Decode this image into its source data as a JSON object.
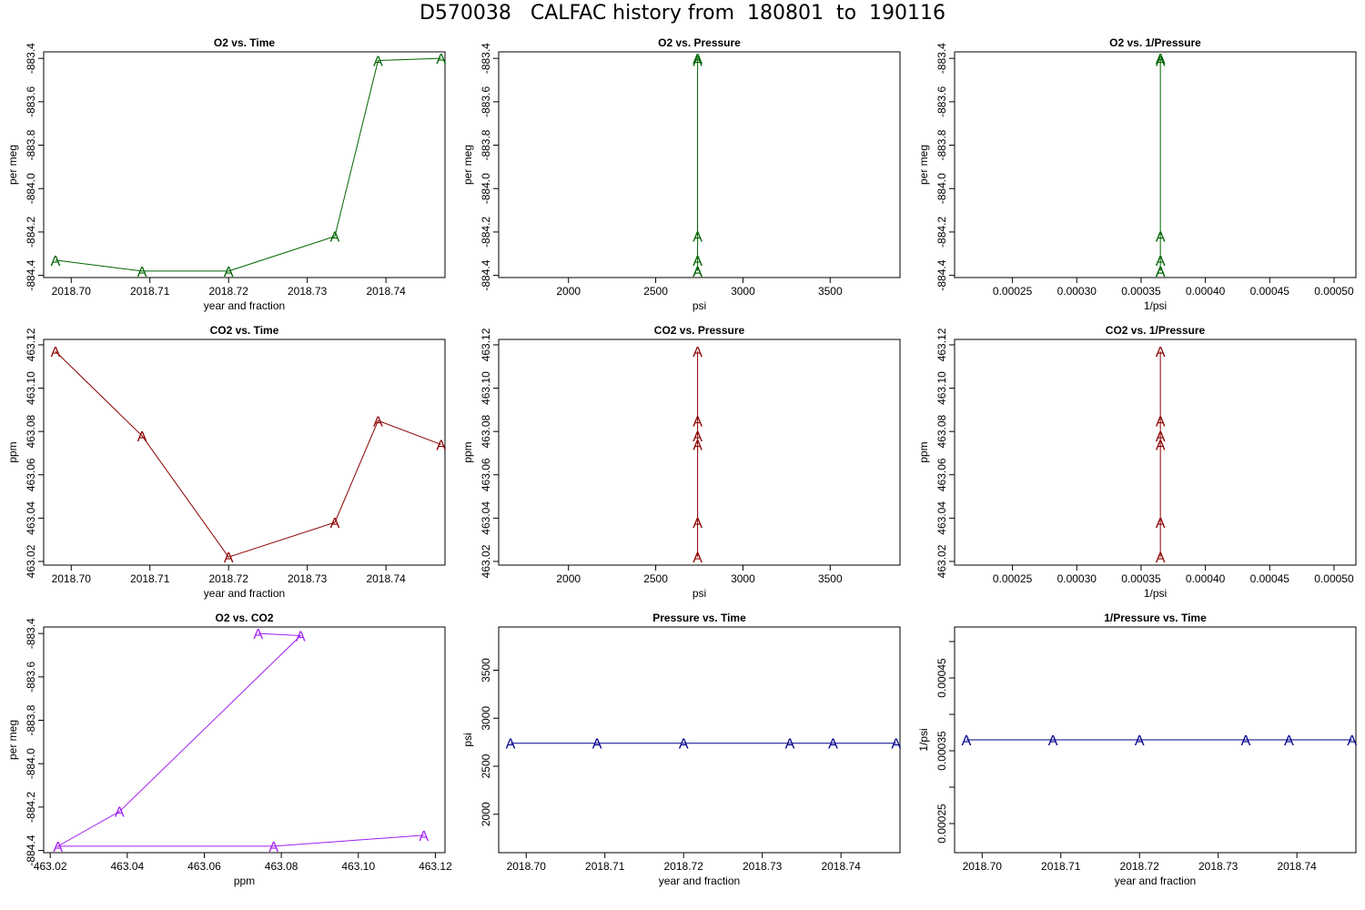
{
  "title": "D570038   CALFAC history from  180801  to  190116",
  "chart_data": [
    {
      "type": "line",
      "title": "O2 vs. Time",
      "xlabel": "year and fraction",
      "ylabel": "per meg",
      "xlim": [
        2018.6965,
        2018.7475
      ],
      "ylim": [
        -884.41,
        -883.37
      ],
      "xticks": [
        "2018.70",
        "2018.71",
        "2018.72",
        "2018.73",
        "2018.74"
      ],
      "yticks": [
        "-884.4",
        "-884.2",
        "-884.0",
        "-883.8",
        "-883.6",
        "-883.4"
      ],
      "color": "#006400",
      "marker": "A",
      "series": [
        {
          "x": [
            2018.698,
            2018.709,
            2018.72,
            2018.7335,
            2018.739,
            2018.747
          ],
          "y": [
            -884.33,
            -884.38,
            -884.38,
            -884.22,
            -883.41,
            -883.4
          ]
        }
      ]
    },
    {
      "type": "line",
      "title": "O2 vs. Pressure",
      "xlabel": "psi",
      "ylabel": "per meg",
      "xlim": [
        1600,
        3900
      ],
      "ylim": [
        -884.41,
        -883.37
      ],
      "xticks": [
        "2000",
        "2500",
        "3000",
        "3500"
      ],
      "yticks": [
        "-884.4",
        "-884.2",
        "-884.0",
        "-883.8",
        "-883.6",
        "-883.4"
      ],
      "color": "#006400",
      "marker": "A",
      "series": [
        {
          "x": [
            2740,
            2740,
            2740,
            2740,
            2740,
            2740
          ],
          "y": [
            -884.33,
            -884.38,
            -884.38,
            -884.22,
            -883.41,
            -883.4
          ]
        }
      ]
    },
    {
      "type": "line",
      "title": "O2 vs. 1/Pressure",
      "xlabel": "1/psi",
      "ylabel": "per meg",
      "xlim": [
        0.000205,
        0.000517
      ],
      "ylim": [
        -884.41,
        -883.37
      ],
      "xticks": [
        "0.00025",
        "0.00030",
        "0.00035",
        "0.00040",
        "0.00045",
        "0.00050"
      ],
      "yticks": [
        "-884.4",
        "-884.2",
        "-884.0",
        "-883.8",
        "-883.6",
        "-883.4"
      ],
      "color": "#006400",
      "marker": "A",
      "series": [
        {
          "x": [
            0.000365,
            0.000365,
            0.000365,
            0.000365,
            0.000365,
            0.000365
          ],
          "y": [
            -884.33,
            -884.38,
            -884.38,
            -884.22,
            -883.41,
            -883.4
          ]
        }
      ]
    },
    {
      "type": "line",
      "title": "CO2 vs. Time",
      "xlabel": "year and fraction",
      "ylabel": "ppm",
      "xlim": [
        2018.6965,
        2018.7475
      ],
      "ylim": [
        463.0183,
        463.1225
      ],
      "xticks": [
        "2018.70",
        "2018.71",
        "2018.72",
        "2018.73",
        "2018.74"
      ],
      "yticks": [
        "463.02",
        "463.04",
        "463.06",
        "463.08",
        "463.10",
        "463.12"
      ],
      "color": "#8b0000",
      "marker": "A",
      "series": [
        {
          "x": [
            2018.698,
            2018.709,
            2018.72,
            2018.7335,
            2018.739,
            2018.747
          ],
          "y": [
            463.117,
            463.078,
            463.022,
            463.038,
            463.085,
            463.074
          ]
        }
      ]
    },
    {
      "type": "line",
      "title": "CO2 vs. Pressure",
      "xlabel": "psi",
      "ylabel": "ppm",
      "xlim": [
        1600,
        3900
      ],
      "ylim": [
        463.0183,
        463.1225
      ],
      "xticks": [
        "2000",
        "2500",
        "3000",
        "3500"
      ],
      "yticks": [
        "463.02",
        "463.04",
        "463.06",
        "463.08",
        "463.10",
        "463.12"
      ],
      "color": "#8b0000",
      "marker": "A",
      "series": [
        {
          "x": [
            2740,
            2740,
            2740,
            2740,
            2740,
            2740
          ],
          "y": [
            463.117,
            463.078,
            463.022,
            463.038,
            463.085,
            463.074
          ]
        }
      ]
    },
    {
      "type": "line",
      "title": "CO2 vs. 1/Pressure",
      "xlabel": "1/psi",
      "ylabel": "ppm",
      "xlim": [
        0.000205,
        0.000517
      ],
      "ylim": [
        463.0183,
        463.1225
      ],
      "xticks": [
        "0.00025",
        "0.00030",
        "0.00035",
        "0.00040",
        "0.00045",
        "0.00050"
      ],
      "yticks": [
        "463.02",
        "463.04",
        "463.06",
        "463.08",
        "463.10",
        "463.12"
      ],
      "color": "#8b0000",
      "marker": "A",
      "series": [
        {
          "x": [
            0.000365,
            0.000365,
            0.000365,
            0.000365,
            0.000365,
            0.000365
          ],
          "y": [
            463.117,
            463.078,
            463.022,
            463.038,
            463.085,
            463.074
          ]
        }
      ]
    },
    {
      "type": "line",
      "title": "O2 vs. CO2",
      "xlabel": "ppm",
      "ylabel": "per meg",
      "xlim": [
        463.0183,
        463.1225
      ],
      "ylim": [
        -884.41,
        -883.37
      ],
      "xticks": [
        "463.02",
        "463.04",
        "463.06",
        "463.08",
        "463.10",
        "463.12"
      ],
      "yticks": [
        "-884.4",
        "-884.2",
        "-884.0",
        "-883.8",
        "-883.6",
        "-883.4"
      ],
      "color": "#a020f0",
      "marker": "A",
      "series": [
        {
          "x": [
            463.117,
            463.078,
            463.022,
            463.038,
            463.085,
            463.074
          ],
          "y": [
            -884.33,
            -884.38,
            -884.38,
            -884.22,
            -883.41,
            -883.4
          ]
        }
      ]
    },
    {
      "type": "line",
      "title": "Pressure vs. Time",
      "xlabel": "year and fraction",
      "ylabel": "psi",
      "xlim": [
        2018.6965,
        2018.7475
      ],
      "ylim": [
        1600,
        3950
      ],
      "xticks": [
        "2018.70",
        "2018.71",
        "2018.72",
        "2018.73",
        "2018.74"
      ],
      "yticks": [
        "2000",
        "2500",
        "3000",
        "3500"
      ],
      "color": "#00008b",
      "marker": "A",
      "series": [
        {
          "x": [
            2018.698,
            2018.709,
            2018.72,
            2018.7335,
            2018.739,
            2018.747
          ],
          "y": [
            2740,
            2740,
            2740,
            2740,
            2740,
            2740
          ]
        }
      ]
    },
    {
      "type": "line",
      "title": "1/Pressure vs. Time",
      "xlabel": "year and fraction",
      "ylabel": "1/psi",
      "xlim": [
        2018.6965,
        2018.7475
      ],
      "ylim": [
        0.00021,
        0.00052
      ],
      "xticks": [
        "2018.70",
        "2018.71",
        "2018.72",
        "2018.73",
        "2018.74"
      ],
      "yticks": [
        "0.00025",
        "0.00035",
        "0.00045"
      ],
      "minor_yticks": [
        0.0003,
        0.0004,
        0.0005
      ],
      "color": "#00008b",
      "marker": "A",
      "series": [
        {
          "x": [
            2018.698,
            2018.709,
            2018.72,
            2018.7335,
            2018.739,
            2018.747
          ],
          "y": [
            0.000365,
            0.000365,
            0.000365,
            0.000365,
            0.000365,
            0.000365
          ]
        }
      ]
    }
  ]
}
